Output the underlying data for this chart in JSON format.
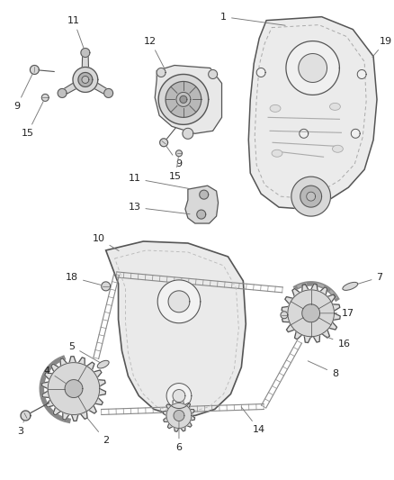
{
  "bg_color": "#ffffff",
  "lc": "#555555",
  "lc_thin": "#777777",
  "fill_light": "#e8e8e8",
  "fill_mid": "#d8d8d8",
  "fill_dark": "#c0c0c0",
  "font_size": 8.0,
  "font_color": "#222222"
}
